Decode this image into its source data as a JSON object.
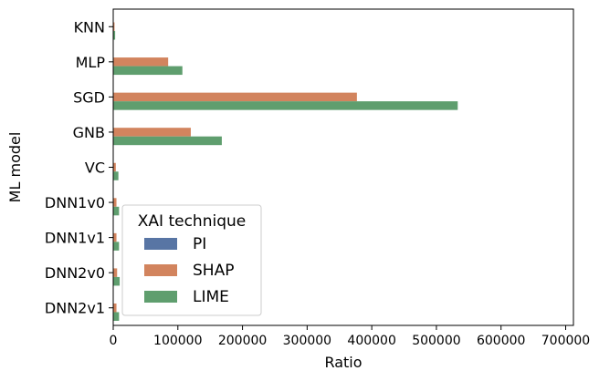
{
  "chart_data": {
    "type": "bar",
    "orientation": "horizontal",
    "categories": [
      "KNN",
      "MLP",
      "SGD",
      "GNB",
      "VC",
      "DNN1v0",
      "DNN1v1",
      "DNN2v0",
      "DNN2v1"
    ],
    "series": [
      {
        "name": "PI",
        "color": "#5875a4",
        "values": [
          300,
          300,
          300,
          300,
          300,
          300,
          300,
          300,
          300
        ]
      },
      {
        "name": "SHAP",
        "color": "#d2845e",
        "values": [
          2000,
          85000,
          377000,
          120000,
          4000,
          5000,
          5000,
          6000,
          5000
        ]
      },
      {
        "name": "LIME",
        "color": "#5f9e6e",
        "values": [
          3000,
          107000,
          533000,
          168000,
          8000,
          9000,
          9000,
          10000,
          9000
        ]
      }
    ],
    "xlabel": "Ratio",
    "ylabel": "ML model",
    "xlim": [
      0,
      712000
    ],
    "xticks": [
      0,
      100000,
      200000,
      300000,
      400000,
      500000,
      600000,
      700000
    ],
    "xtick_labels": [
      "0",
      "100000",
      "200000",
      "300000",
      "400000",
      "500000",
      "600000",
      "700000"
    ],
    "grid": false,
    "legend": {
      "title": "XAI technique",
      "placement": "lower-left"
    }
  }
}
